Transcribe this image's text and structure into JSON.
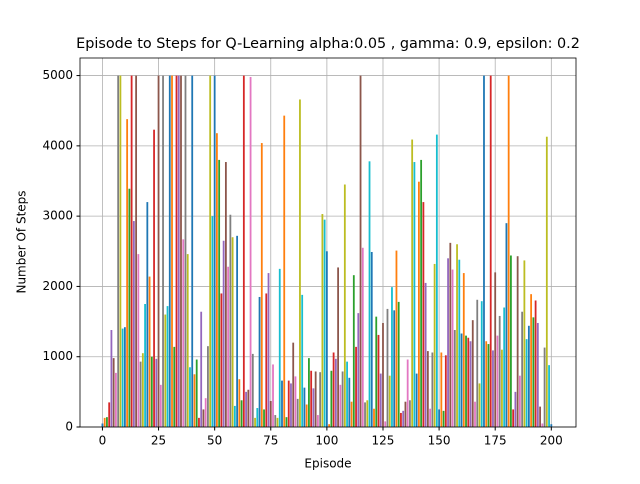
{
  "chart_data": {
    "type": "bar",
    "title": "Episode to Steps for Q-Learning alpha:0.05 , gamma: 0.9, epsilon: 0.2",
    "xlabel": "Episode",
    "ylabel": "Number Of Steps",
    "colors": [
      "#1f77b4",
      "#ff7f0e",
      "#2ca02c",
      "#d62728",
      "#9467bd",
      "#8c564b",
      "#e377c2",
      "#7f7f7f",
      "#bcbd22",
      "#17becf"
    ],
    "values": [
      50,
      130,
      140,
      350,
      1380,
      980,
      770,
      5000,
      5000,
      1400,
      1420,
      4380,
      3390,
      5000,
      2930,
      5000,
      2460,
      930,
      1050,
      1750,
      3200,
      2140,
      1000,
      4230,
      970,
      5000,
      600,
      5000,
      1600,
      1720,
      5000,
      5000,
      1140,
      5000,
      5000,
      5000,
      2670,
      5000,
      2460,
      850,
      5000,
      750,
      960,
      130,
      1640,
      250,
      410,
      1150,
      5000,
      3000,
      5000,
      4180,
      3800,
      1900,
      2650,
      3770,
      2280,
      3020,
      2700,
      300,
      2720,
      680,
      380,
      5000,
      500,
      530,
      4980,
      1040,
      130,
      270,
      1850,
      4040,
      250,
      1900,
      2190,
      370,
      890,
      170,
      130,
      2250,
      660,
      4430,
      140,
      660,
      620,
      1200,
      720,
      400,
      4660,
      1880,
      560,
      320,
      980,
      800,
      550,
      790,
      170,
      780,
      3030,
      2950,
      2500,
      40,
      800,
      1060,
      970,
      2270,
      600,
      790,
      3450,
      930,
      700,
      360,
      2160,
      1140,
      1620,
      5000,
      2550,
      350,
      380,
      3780,
      2490,
      260,
      1570,
      1310,
      760,
      1480,
      80,
      1680,
      730,
      1990,
      1660,
      2510,
      1780,
      200,
      230,
      360,
      960,
      380,
      4090,
      3770,
      760,
      3490,
      3800,
      3200,
      2050,
      1080,
      260,
      1060,
      2320,
      4160,
      250,
      1060,
      230,
      1020,
      2400,
      2620,
      2240,
      1380,
      2600,
      2380,
      1330,
      2190,
      1300,
      1270,
      1220,
      1520,
      360,
      1810,
      620,
      1790,
      5000,
      1220,
      1180,
      5000,
      1090,
      2200,
      1300,
      1580,
      1100,
      1700,
      2900,
      5000,
      2440,
      250,
      500,
      2430,
      730,
      1640,
      2370,
      1250,
      1440,
      1890,
      1560,
      1800,
      1480,
      290,
      50,
      1130,
      4130,
      880,
      40
    ],
    "xlim": [
      -10,
      211
    ],
    "xticks": [
      0,
      25,
      50,
      75,
      100,
      125,
      150,
      175,
      200
    ],
    "ylim": [
      0,
      5250
    ],
    "yticks": [
      0,
      1000,
      2000,
      3000,
      4000,
      5000
    ],
    "grid": true
  }
}
